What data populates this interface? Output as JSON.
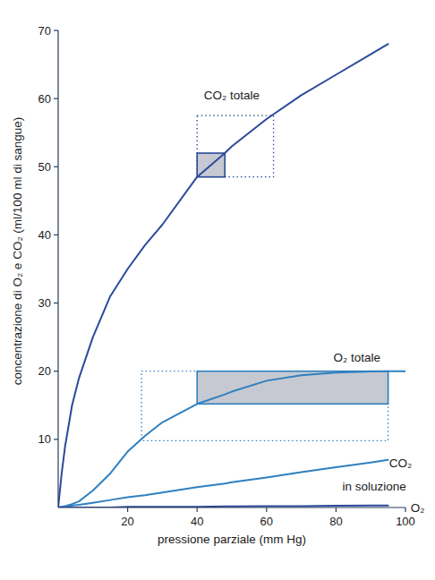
{
  "chart_data": {
    "type": "line",
    "xlabel": "pressione parziale (mm Hg)",
    "ylabel": "concentrazione di O₂ e CO₂ (ml/100 ml di sangue)",
    "xlim": [
      0,
      100
    ],
    "ylim": [
      0,
      70
    ],
    "xticks": [
      20,
      40,
      60,
      80,
      100
    ],
    "yticks": [
      10,
      20,
      30,
      40,
      50,
      60,
      70
    ],
    "grid": false,
    "x": [
      0,
      1,
      2,
      4,
      6,
      10,
      15,
      20,
      25,
      30,
      40,
      48,
      50,
      60,
      70,
      80,
      90,
      95,
      100
    ],
    "series": [
      {
        "color": "#2b4a9b",
        "line_style": "solid",
        "values": [
          0,
          5,
          9,
          15,
          19,
          25,
          31,
          35,
          38.5,
          41.5,
          48.5,
          52,
          53,
          57,
          60.5,
          63.5,
          66.5,
          68,
          null
        ]
      },
      {
        "color": "#2f80c0",
        "line_style": "solid",
        "values": [
          0,
          0.1,
          0.2,
          0.5,
          0.9,
          2.5,
          5,
          8.2,
          10.5,
          12.5,
          15.2,
          16.6,
          17,
          18.6,
          19.4,
          19.8,
          19.95,
          20,
          20
        ]
      },
      {
        "color": "#2f80c0",
        "line_style": "solid",
        "values": [
          0,
          0.1,
          0.1,
          0.3,
          0.4,
          0.7,
          1.1,
          1.5,
          1.8,
          2.2,
          3,
          3.5,
          3.7,
          4.4,
          5.2,
          5.9,
          6.6,
          7,
          null
        ]
      },
      {
        "color": "#2b4a9b",
        "line_style": "solid",
        "values": [
          0,
          0,
          0,
          0,
          0,
          0,
          0,
          0.1,
          0.1,
          0.1,
          0.1,
          0.15,
          0.15,
          0.2,
          0.2,
          0.25,
          0.3,
          0.3,
          null
        ]
      }
    ],
    "boxes": [
      {
        "x": [
          40,
          62
        ],
        "y": [
          48.5,
          57.5
        ],
        "line_style": "dotted",
        "color": "#2b4a9b"
      },
      {
        "x": [
          40,
          48
        ],
        "y": [
          48.5,
          52
        ],
        "line_style": "solid",
        "color": "#2b4a9b"
      },
      {
        "x": [
          24,
          95
        ],
        "y": [
          9.8,
          20
        ],
        "line_style": "dotted",
        "color": "#2f80c0"
      },
      {
        "x": [
          40,
          95
        ],
        "y": [
          15.2,
          20
        ],
        "line_style": "solid",
        "color": "#2f80c0"
      }
    ],
    "annotations": [
      {
        "text": "CO₂ totale",
        "x": 50,
        "y": 60.5
      },
      {
        "text": "O₂ totale",
        "x": 86,
        "y": 22
      },
      {
        "text": "CO₂",
        "x": 98.6,
        "y": 6.6
      },
      {
        "text": "in soluzione",
        "x": 91,
        "y": 3.2
      },
      {
        "text": "O₂",
        "x": 103.5,
        "y": 0
      }
    ]
  }
}
